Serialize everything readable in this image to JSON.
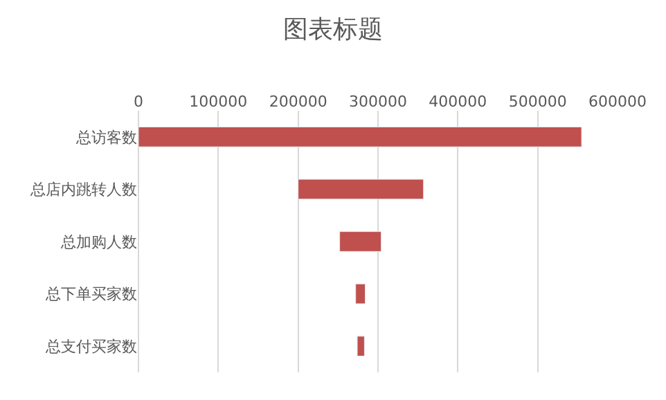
{
  "chart_data": {
    "type": "bar",
    "orientation": "horizontal",
    "title": "图表标题",
    "categories": [
      "总访客数",
      "总店内跳转人数",
      "总加购人数",
      "总下单买家数",
      "总支付买家数"
    ],
    "base": [
      0,
      200000,
      252000,
      272000,
      274000
    ],
    "values": [
      555000,
      157000,
      52000,
      12000,
      9000
    ],
    "color": "#c0504d",
    "xlim": [
      0,
      600000
    ],
    "xticks": [
      0,
      100000,
      200000,
      300000,
      400000,
      500000,
      600000
    ],
    "grid": "x"
  }
}
